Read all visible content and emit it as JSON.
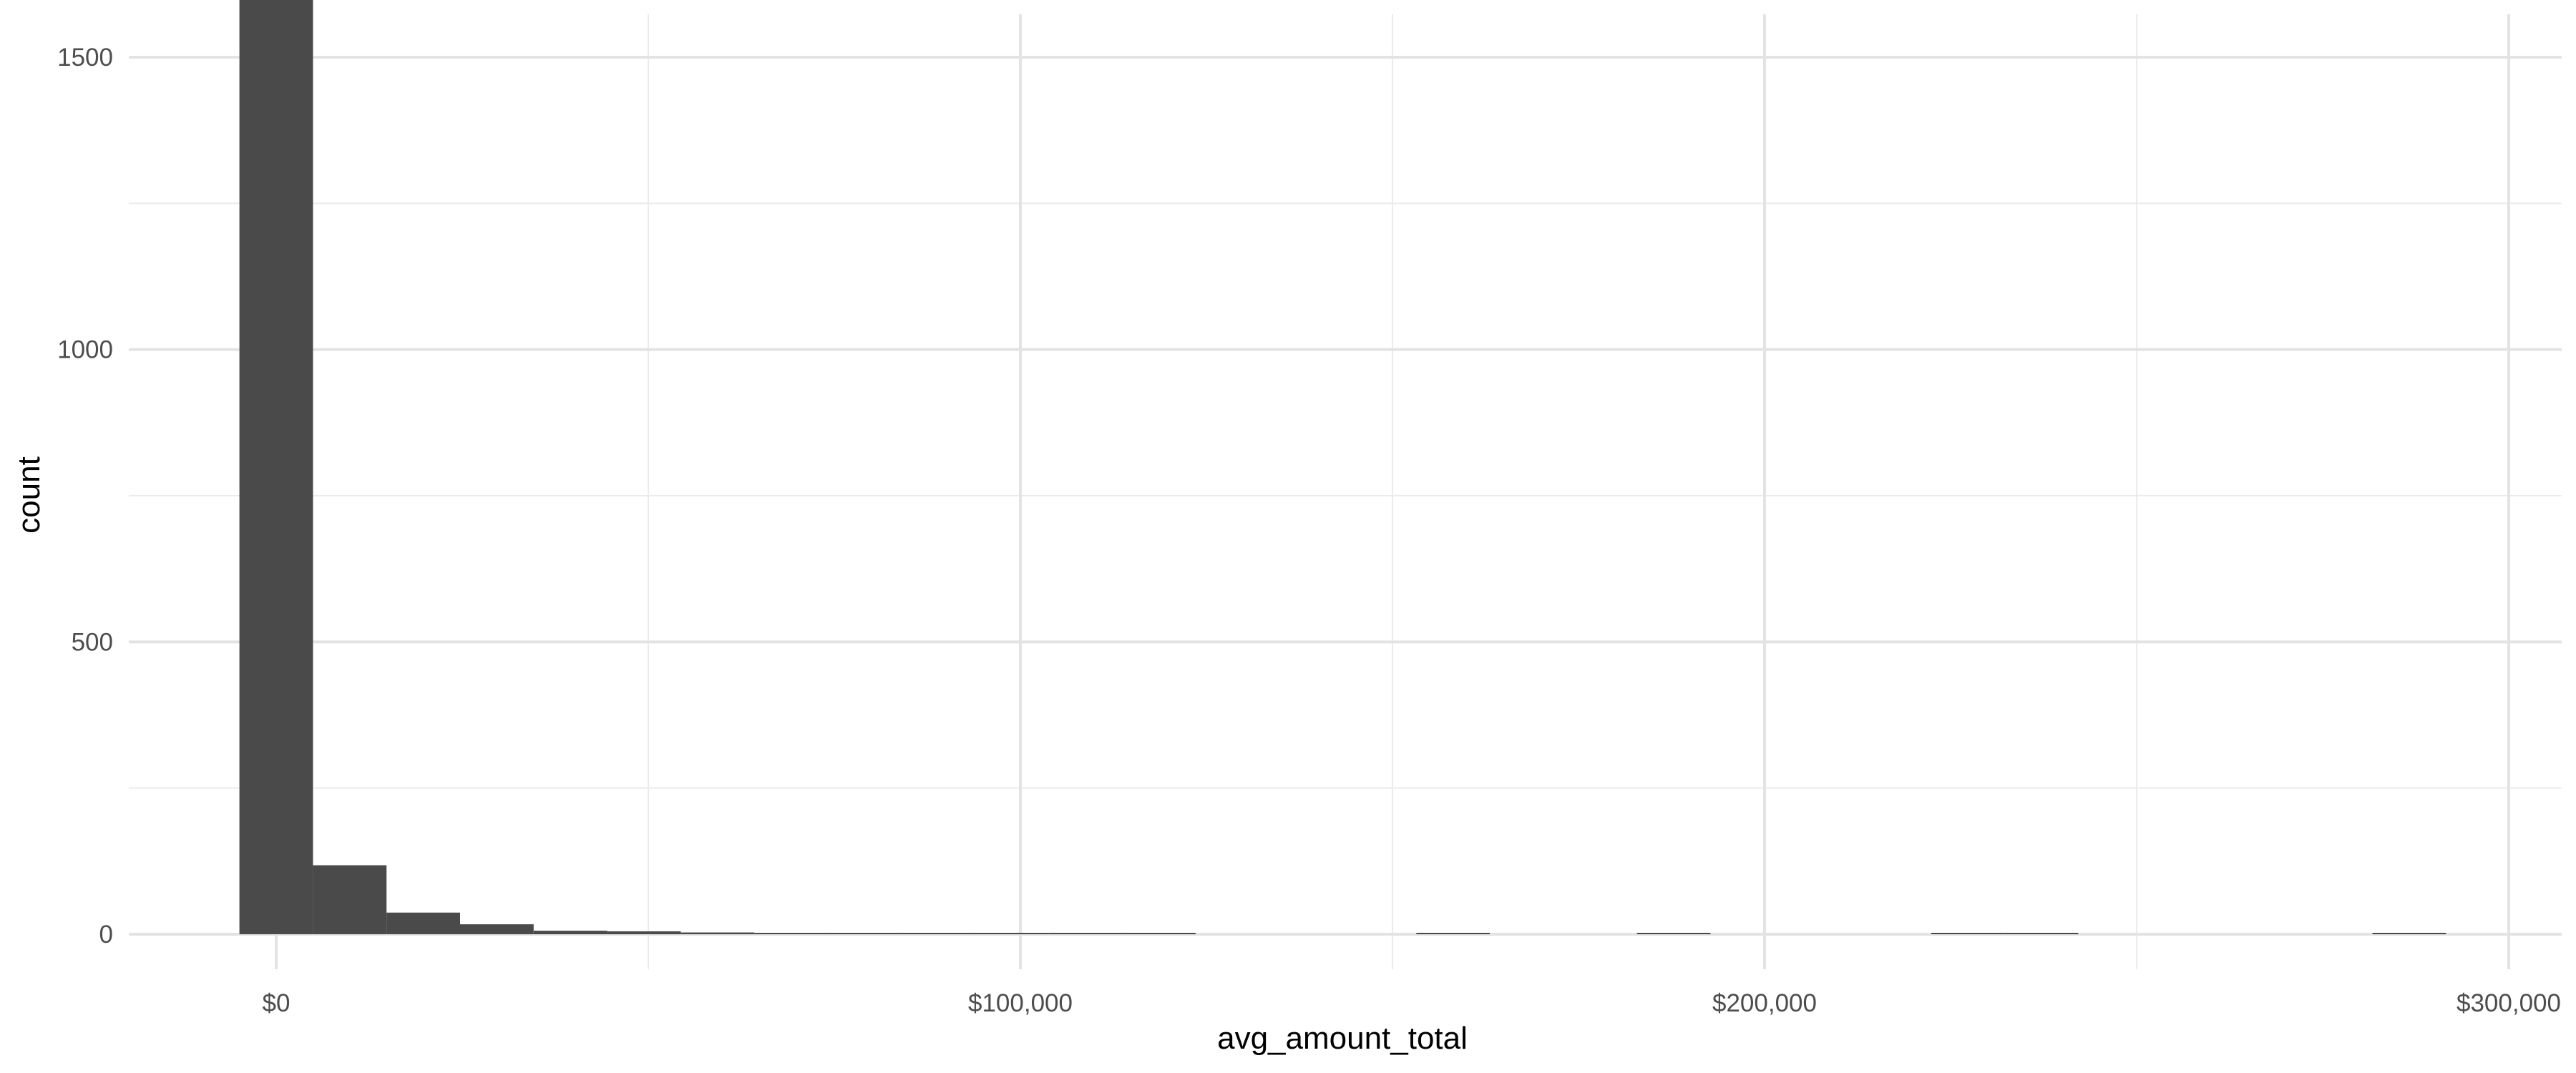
{
  "chart_data": {
    "type": "bar",
    "subtype": "histogram",
    "xlabel": "avg_amount_total",
    "ylabel": "count",
    "xlim": [
      -20000,
      305000
    ],
    "ylim": [
      -80,
      1750
    ],
    "x_ticks": [
      {
        "value": 0,
        "label": "$0"
      },
      {
        "value": 100000,
        "label": "$100,000"
      },
      {
        "value": 200000,
        "label": "$200,000"
      },
      {
        "value": 300000,
        "label": "$300,000"
      }
    ],
    "x_minor_ticks": [
      50000,
      150000,
      250000
    ],
    "y_ticks": [
      {
        "value": 0,
        "label": "0"
      },
      {
        "value": 500,
        "label": "500"
      },
      {
        "value": 1000,
        "label": "1000"
      },
      {
        "value": 1500,
        "label": "1500"
      }
    ],
    "y_minor_ticks": [
      250,
      750,
      1250,
      1750
    ],
    "grid": true,
    "bar_color": "#4a4a4a",
    "bins": [
      {
        "x0": -4942,
        "x1": 4942,
        "count": 1723
      },
      {
        "x0": 4942,
        "x1": 14826,
        "count": 118
      },
      {
        "x0": 14826,
        "x1": 24710,
        "count": 37
      },
      {
        "x0": 24710,
        "x1": 34594,
        "count": 17
      },
      {
        "x0": 34594,
        "x1": 44478,
        "count": 6
      },
      {
        "x0": 44478,
        "x1": 54362,
        "count": 5
      },
      {
        "x0": 54362,
        "x1": 64246,
        "count": 3
      },
      {
        "x0": 64246,
        "x1": 74130,
        "count": 2
      },
      {
        "x0": 74130,
        "x1": 84014,
        "count": 2
      },
      {
        "x0": 84014,
        "x1": 93898,
        "count": 1
      },
      {
        "x0": 93898,
        "x1": 103782,
        "count": 1
      },
      {
        "x0": 103782,
        "x1": 113666,
        "count": 1
      },
      {
        "x0": 113666,
        "x1": 123550,
        "count": 1
      },
      {
        "x0": 153202,
        "x1": 163086,
        "count": 1
      },
      {
        "x0": 182854,
        "x1": 192738,
        "count": 1
      },
      {
        "x0": 222390,
        "x1": 232274,
        "count": 1
      },
      {
        "x0": 232274,
        "x1": 242158,
        "count": 1
      },
      {
        "x0": 281694,
        "x1": 291578,
        "count": 1
      }
    ]
  }
}
